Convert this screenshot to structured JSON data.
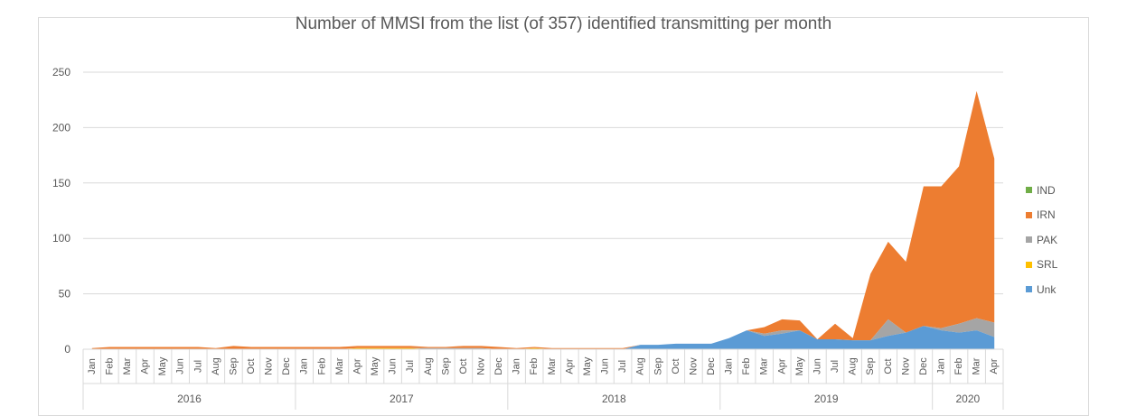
{
  "chart_data": {
    "type": "area",
    "title": "Number of MMSI from the list (of 357) identified transmitting per month",
    "xlabel": "",
    "ylabel": "",
    "ylim": [
      0,
      250
    ],
    "yticks": [
      0,
      50,
      100,
      150,
      200,
      250
    ],
    "grid": true,
    "legend_position": "right",
    "stacked": true,
    "months": [
      "Jan",
      "Feb",
      "Mar",
      "Apr",
      "May",
      "Jun",
      "Jul",
      "Aug",
      "Sep",
      "Oct",
      "Nov",
      "Dec",
      "Jan",
      "Feb",
      "Mar",
      "Apr",
      "May",
      "Jun",
      "Jul",
      "Aug",
      "Sep",
      "Oct",
      "Nov",
      "Dec",
      "Jan",
      "Feb",
      "Mar",
      "Apr",
      "May",
      "Jun",
      "Jul",
      "Aug",
      "Sep",
      "Oct",
      "Nov",
      "Dec",
      "Jan",
      "Feb",
      "Mar",
      "Apr",
      "May",
      "Jun",
      "Jul",
      "Aug",
      "Sep",
      "Oct",
      "Nov",
      "Dec",
      "Jan",
      "Feb",
      "Mar",
      "Apr"
    ],
    "years": [
      {
        "label": "2016",
        "months": 12
      },
      {
        "label": "2017",
        "months": 12
      },
      {
        "label": "2018",
        "months": 12
      },
      {
        "label": "2019",
        "months": 12
      },
      {
        "label": "2020",
        "months": 4
      }
    ],
    "series": [
      {
        "name": "IND",
        "color": "#70ad47",
        "values": [
          0,
          0,
          0,
          0,
          0,
          0,
          0,
          0,
          0,
          0,
          0,
          0,
          0,
          0,
          0,
          0,
          0,
          0,
          0,
          0,
          0,
          0,
          0,
          0,
          0,
          0,
          0,
          0,
          0,
          0,
          0,
          0,
          0,
          0,
          0,
          0,
          0,
          0,
          0,
          0,
          0,
          0,
          0,
          0,
          0,
          0,
          0,
          0,
          0,
          0,
          0,
          0
        ]
      },
      {
        "name": "IRN",
        "color": "#ed7d31",
        "values": [
          1,
          2,
          2,
          2,
          2,
          2,
          2,
          1,
          3,
          2,
          2,
          2,
          2,
          2,
          2,
          2,
          2,
          2,
          2,
          1,
          1,
          2,
          2,
          2,
          1,
          1,
          1,
          1,
          1,
          1,
          1,
          0,
          0,
          0,
          0,
          0,
          0,
          0,
          6,
          10,
          9,
          0,
          14,
          2,
          60,
          70,
          64,
          126,
          128,
          142,
          205,
          148
        ]
      },
      {
        "name": "PAK",
        "color": "#a5a5a5",
        "values": [
          0,
          0,
          0,
          0,
          0,
          0,
          0,
          0,
          0,
          0,
          0,
          0,
          0,
          0,
          0,
          0,
          0,
          0,
          0,
          1,
          1,
          1,
          1,
          0,
          0,
          0,
          0,
          0,
          0,
          0,
          0,
          0,
          0,
          0,
          0,
          0,
          0,
          0,
          2,
          3,
          0,
          0,
          0,
          0,
          0,
          15,
          0,
          0,
          2,
          8,
          11,
          13
        ]
      },
      {
        "name": "SRL",
        "color": "#ffc000",
        "values": [
          0,
          0,
          0,
          0,
          0,
          0,
          0,
          0,
          0,
          0,
          0,
          0,
          0,
          0,
          0,
          1,
          1,
          1,
          1,
          0,
          0,
          0,
          0,
          0,
          0,
          1,
          0,
          0,
          0,
          0,
          0,
          0,
          0,
          0,
          0,
          0,
          0,
          0,
          0,
          0,
          0,
          0,
          0,
          0,
          0,
          0,
          0,
          0,
          0,
          0,
          0,
          0
        ]
      },
      {
        "name": "Unk",
        "color": "#5b9bd5",
        "values": [
          0,
          0,
          0,
          0,
          0,
          0,
          0,
          0,
          0,
          0,
          0,
          0,
          0,
          0,
          0,
          0,
          0,
          0,
          0,
          0,
          0,
          0,
          0,
          0,
          0,
          0,
          0,
          0,
          0,
          0,
          0,
          4,
          4,
          5,
          5,
          5,
          10,
          17,
          12,
          14,
          17,
          9,
          9,
          8,
          8,
          12,
          15,
          21,
          17,
          15,
          17,
          11
        ]
      }
    ]
  }
}
